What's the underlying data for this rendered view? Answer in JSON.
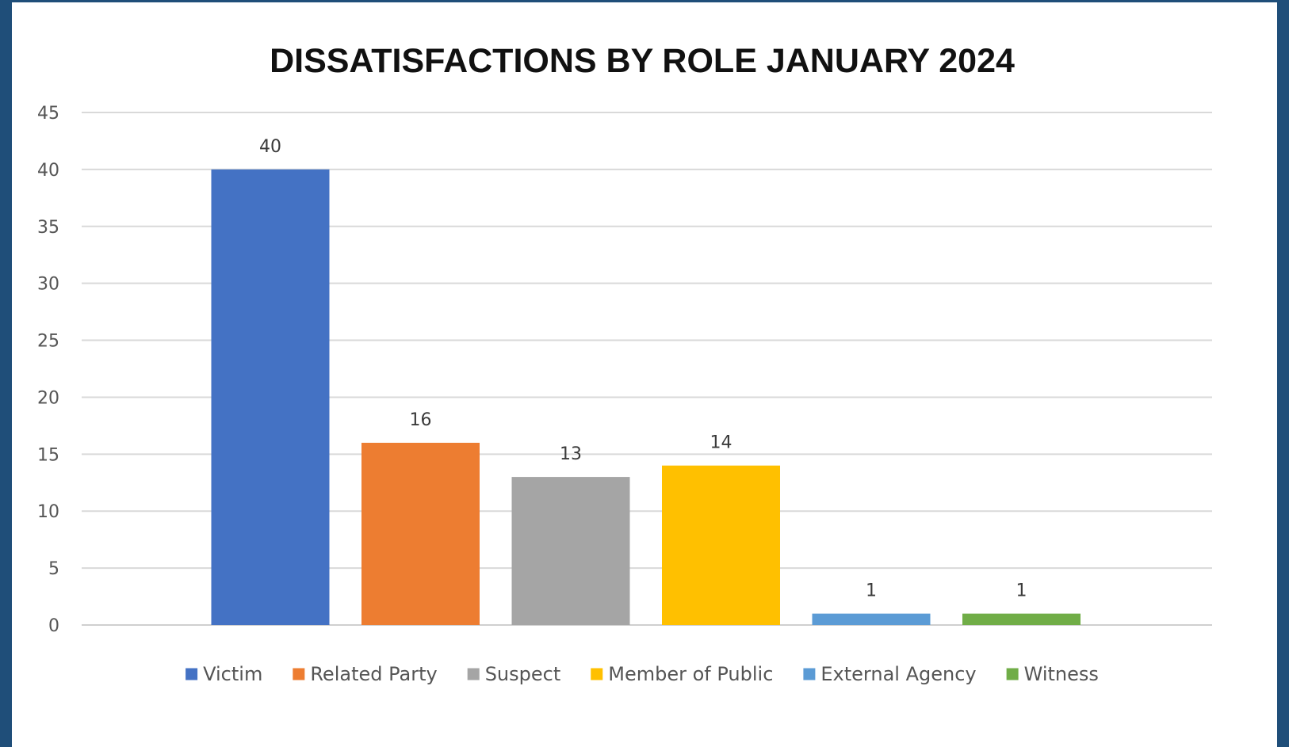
{
  "chart_data": {
    "type": "bar",
    "title": "DISSATISFACTIONS BY ROLE JANUARY 2024",
    "xlabel": "",
    "ylabel": "",
    "ylim": [
      0,
      45
    ],
    "yticks": [
      0,
      5,
      10,
      15,
      20,
      25,
      30,
      35,
      40,
      45
    ],
    "grid": true,
    "legend_position": "bottom",
    "categories": [
      "Victim",
      "Related Party",
      "Suspect",
      "Member of Public",
      "External Agency",
      "Witness"
    ],
    "values": [
      40,
      16,
      13,
      14,
      1,
      1
    ],
    "colors": [
      "#4472c4",
      "#ed7d31",
      "#a5a5a5",
      "#ffc000",
      "#5b9bd5",
      "#70ad47"
    ]
  }
}
